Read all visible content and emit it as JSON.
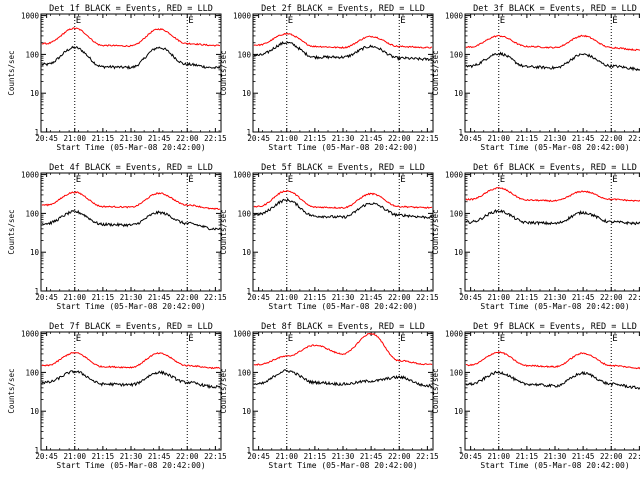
{
  "figure": {
    "ylabel": "Counts/sec",
    "xlabel": "Start Time (05-Mar-08 20:42:00)",
    "x_tick_labels": [
      "20:45",
      "21:00",
      "21:15",
      "21:30",
      "21:45",
      "22:00",
      "22:15"
    ],
    "y_tick_labels": [
      "1",
      "10",
      "100",
      "1000"
    ],
    "event_markers": [
      "E",
      "E"
    ],
    "colors": {
      "events": "#000000",
      "lld": "#ff0000",
      "axes": "#000000",
      "background": "#ffffff"
    }
  },
  "chart_data": [
    {
      "type": "line",
      "title": "Det 1f BLACK = Events, RED = LLD",
      "x_unit": "minutes after 20:42:00",
      "x": [
        3,
        18,
        33,
        48,
        63,
        78,
        93
      ],
      "xlim": [
        0,
        96
      ],
      "ylim": [
        1,
        1100
      ],
      "yscale": "log",
      "vlines": [
        18,
        78
      ],
      "series": [
        {
          "color": "#000000",
          "values": [
            55,
            150,
            48,
            46,
            150,
            55,
            45
          ]
        },
        {
          "color": "#ff0000",
          "values": [
            190,
            470,
            170,
            165,
            450,
            190,
            170
          ]
        }
      ]
    },
    {
      "type": "line",
      "title": "Det 2f BLACK = Events, RED = LLD",
      "x_unit": "minutes after 20:42:00",
      "x": [
        3,
        18,
        33,
        48,
        63,
        78,
        93
      ],
      "xlim": [
        0,
        96
      ],
      "ylim": [
        1,
        1100
      ],
      "yscale": "log",
      "vlines": [
        18,
        78
      ],
      "series": [
        {
          "color": "#000000",
          "values": [
            95,
            200,
            85,
            85,
            160,
            80,
            75
          ]
        },
        {
          "color": "#ff0000",
          "values": [
            175,
            340,
            160,
            150,
            290,
            160,
            150
          ]
        }
      ]
    },
    {
      "type": "line",
      "title": "Det 3f BLACK = Events, RED = LLD",
      "x_unit": "minutes after 20:42:00",
      "x": [
        3,
        18,
        33,
        48,
        63,
        78,
        93
      ],
      "xlim": [
        0,
        96
      ],
      "ylim": [
        1,
        1100
      ],
      "yscale": "log",
      "vlines": [
        18,
        78
      ],
      "series": [
        {
          "color": "#000000",
          "values": [
            50,
            105,
            48,
            45,
            100,
            50,
            42
          ]
        },
        {
          "color": "#ff0000",
          "values": [
            155,
            300,
            160,
            150,
            300,
            150,
            130
          ]
        }
      ]
    },
    {
      "type": "line",
      "title": "Det 4f BLACK = Events, RED = LLD",
      "x_unit": "minutes after 20:42:00",
      "x": [
        3,
        18,
        33,
        48,
        63,
        78,
        93
      ],
      "xlim": [
        0,
        96
      ],
      "ylim": [
        1,
        1100
      ],
      "yscale": "log",
      "vlines": [
        18,
        78
      ],
      "series": [
        {
          "color": "#000000",
          "values": [
            55,
            110,
            52,
            50,
            105,
            55,
            40
          ]
        },
        {
          "color": "#ff0000",
          "values": [
            165,
            350,
            150,
            145,
            330,
            165,
            130
          ]
        }
      ]
    },
    {
      "type": "line",
      "title": "Det 5f BLACK = Events, RED = LLD",
      "x_unit": "minutes after 20:42:00",
      "x": [
        3,
        18,
        33,
        48,
        63,
        78,
        93
      ],
      "xlim": [
        0,
        96
      ],
      "ylim": [
        1,
        1100
      ],
      "yscale": "log",
      "vlines": [
        18,
        78
      ],
      "series": [
        {
          "color": "#000000",
          "values": [
            95,
            220,
            85,
            80,
            180,
            90,
            80
          ]
        },
        {
          "color": "#ff0000",
          "values": [
            150,
            380,
            145,
            140,
            320,
            150,
            140
          ]
        }
      ]
    },
    {
      "type": "line",
      "title": "Det 6f BLACK = Events, RED = LLD",
      "x_unit": "minutes after 20:42:00",
      "x": [
        3,
        18,
        33,
        48,
        63,
        78,
        93
      ],
      "xlim": [
        0,
        96
      ],
      "ylim": [
        1,
        1100
      ],
      "yscale": "log",
      "vlines": [
        18,
        78
      ],
      "series": [
        {
          "color": "#000000",
          "values": [
            60,
            115,
            58,
            55,
            105,
            60,
            55
          ]
        },
        {
          "color": "#ff0000",
          "values": [
            230,
            450,
            220,
            210,
            370,
            230,
            210
          ]
        }
      ]
    },
    {
      "type": "line",
      "title": "Det 7f BLACK = Events, RED = LLD",
      "x_unit": "minutes after 20:42:00",
      "x": [
        3,
        18,
        33,
        48,
        63,
        78,
        93
      ],
      "xlim": [
        0,
        96
      ],
      "ylim": [
        1,
        1100
      ],
      "yscale": "log",
      "vlines": [
        18,
        78
      ],
      "series": [
        {
          "color": "#000000",
          "values": [
            55,
            105,
            50,
            48,
            100,
            55,
            42
          ]
        },
        {
          "color": "#ff0000",
          "values": [
            150,
            320,
            140,
            135,
            310,
            150,
            130
          ]
        }
      ]
    },
    {
      "type": "line",
      "title": "Det 8f BLACK = Events, RED = LLD",
      "x_unit": "minutes after 20:42:00",
      "x": [
        3,
        18,
        33,
        48,
        63,
        78,
        93
      ],
      "xlim": [
        0,
        96
      ],
      "ylim": [
        1,
        1100
      ],
      "yscale": "log",
      "vlines": [
        18,
        78
      ],
      "series": [
        {
          "color": "#000000",
          "values": [
            50,
            110,
            55,
            50,
            60,
            75,
            45
          ]
        },
        {
          "color": "#ff0000",
          "values": [
            160,
            260,
            500,
            300,
            1000,
            200,
            160
          ]
        }
      ]
    },
    {
      "type": "line",
      "title": "Det 9f BLACK = Events, RED = LLD",
      "x_unit": "minutes after 20:42:00",
      "x": [
        3,
        18,
        33,
        48,
        63,
        78,
        93
      ],
      "xlim": [
        0,
        96
      ],
      "ylim": [
        1,
        1100
      ],
      "yscale": "log",
      "vlines": [
        18,
        78
      ],
      "series": [
        {
          "color": "#000000",
          "values": [
            50,
            100,
            50,
            45,
            95,
            50,
            40
          ]
        },
        {
          "color": "#ff0000",
          "values": [
            155,
            330,
            150,
            140,
            310,
            150,
            130
          ]
        }
      ]
    }
  ]
}
